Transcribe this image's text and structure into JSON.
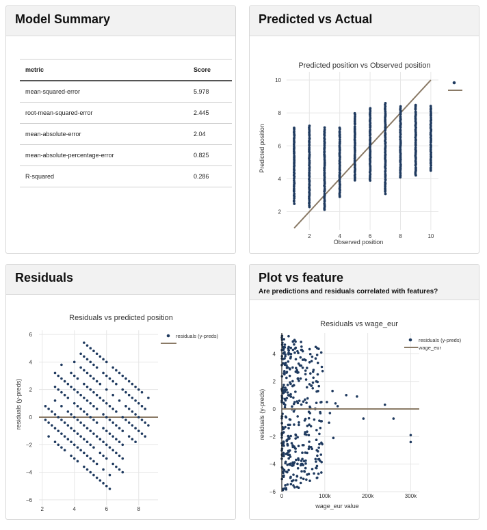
{
  "colors": {
    "point": "#1f3a5f",
    "line": "#8a7a66",
    "grid": "#e6e6e6",
    "header_bg": "#f2f2f2"
  },
  "summary": {
    "title": "Model Summary",
    "headers": [
      "metric",
      "Score"
    ],
    "rows": [
      {
        "metric": "mean-squared-error",
        "score": "5.978"
      },
      {
        "metric": "root-mean-squared-error",
        "score": "2.445"
      },
      {
        "metric": "mean-absolute-error",
        "score": "2.04"
      },
      {
        "metric": "mean-absolute-percentage-error",
        "score": "0.825"
      },
      {
        "metric": "R-squared",
        "score": "0.286"
      }
    ]
  },
  "pva": {
    "card_title": "Predicted vs Actual",
    "chart_title": "Predicted position vs Observed position",
    "xlabel": "Observed position",
    "ylabel": "Predicted position",
    "xticks": [
      "2",
      "4",
      "6",
      "8",
      "10"
    ],
    "yticks": [
      "2",
      "4",
      "6",
      "8",
      "10"
    ]
  },
  "resid": {
    "card_title": "Residuals",
    "chart_title": "Residuals vs predicted position",
    "ylabel": "residuals (y-preds)",
    "legend": [
      "residuals (y-preds)"
    ],
    "xticks": [
      "2",
      "4",
      "6",
      "8"
    ],
    "yticks": [
      "6",
      "4",
      "2",
      "0",
      "−2",
      "−4",
      "−6"
    ]
  },
  "feat": {
    "card_title": "Plot vs feature",
    "subtitle": "Are predictions and residuals correlated with features?",
    "chart_title": "Residuals vs wage_eur",
    "xlabel": "wage_eur value",
    "ylabel": "residuals (y-preds)",
    "legend": [
      "residuals (y-preds)",
      "wage_eur"
    ],
    "xticks": [
      "0",
      "100k",
      "200k",
      "300k"
    ],
    "yticks": [
      "4",
      "2",
      "0",
      "−2",
      "−4",
      "−6"
    ]
  },
  "chart_data": [
    {
      "type": "scatter",
      "title": "Predicted position vs Observed position",
      "xlabel": "Observed position",
      "ylabel": "Predicted position",
      "xlim": [
        0.5,
        10.5
      ],
      "ylim": [
        0.9,
        10.5
      ],
      "columns": [
        {
          "x": 1,
          "y": [
            2.5,
            7.1
          ]
        },
        {
          "x": 2,
          "y": [
            2.3,
            7.2
          ]
        },
        {
          "x": 3,
          "y": [
            2.1,
            7.1
          ]
        },
        {
          "x": 4,
          "y": [
            2.9,
            7.1
          ]
        },
        {
          "x": 5,
          "y": [
            3.9,
            8.0
          ]
        },
        {
          "x": 6,
          "y": [
            3.9,
            8.3
          ]
        },
        {
          "x": 7,
          "y": [
            3.1,
            8.6
          ]
        },
        {
          "x": 8,
          "y": [
            4.1,
            8.4
          ]
        },
        {
          "x": 9,
          "y": [
            4.2,
            8.5
          ]
        },
        {
          "x": 10,
          "y": [
            4.5,
            8.4
          ]
        }
      ],
      "reference_line": [
        [
          1,
          1
        ],
        [
          10,
          10
        ]
      ]
    },
    {
      "type": "scatter",
      "title": "Residuals vs predicted position",
      "ylabel": "residuals (y-preds)",
      "xlim": [
        1.8,
        9.2
      ],
      "ylim": [
        -6.8,
        6.3
      ],
      "pattern": "diagonal bands: residual = k - predicted, k = 1..10",
      "bands": [
        1,
        2,
        3,
        4,
        5,
        6,
        7,
        8,
        9,
        10
      ],
      "zero_line": 0
    },
    {
      "type": "scatter",
      "title": "Residuals vs wage_eur",
      "xlabel": "wage_eur value",
      "ylabel": "residuals (y-preds)",
      "xlim": [
        0,
        320000
      ],
      "ylim": [
        -6,
        5.5
      ],
      "notable_points": [
        [
          150000,
          1.0
        ],
        [
          175000,
          0.9
        ],
        [
          190000,
          -0.7
        ],
        [
          240000,
          0.3
        ],
        [
          260000,
          -0.7
        ],
        [
          300000,
          -1.9
        ],
        [
          300000,
          -2.4
        ]
      ],
      "zero_line": 0
    }
  ]
}
